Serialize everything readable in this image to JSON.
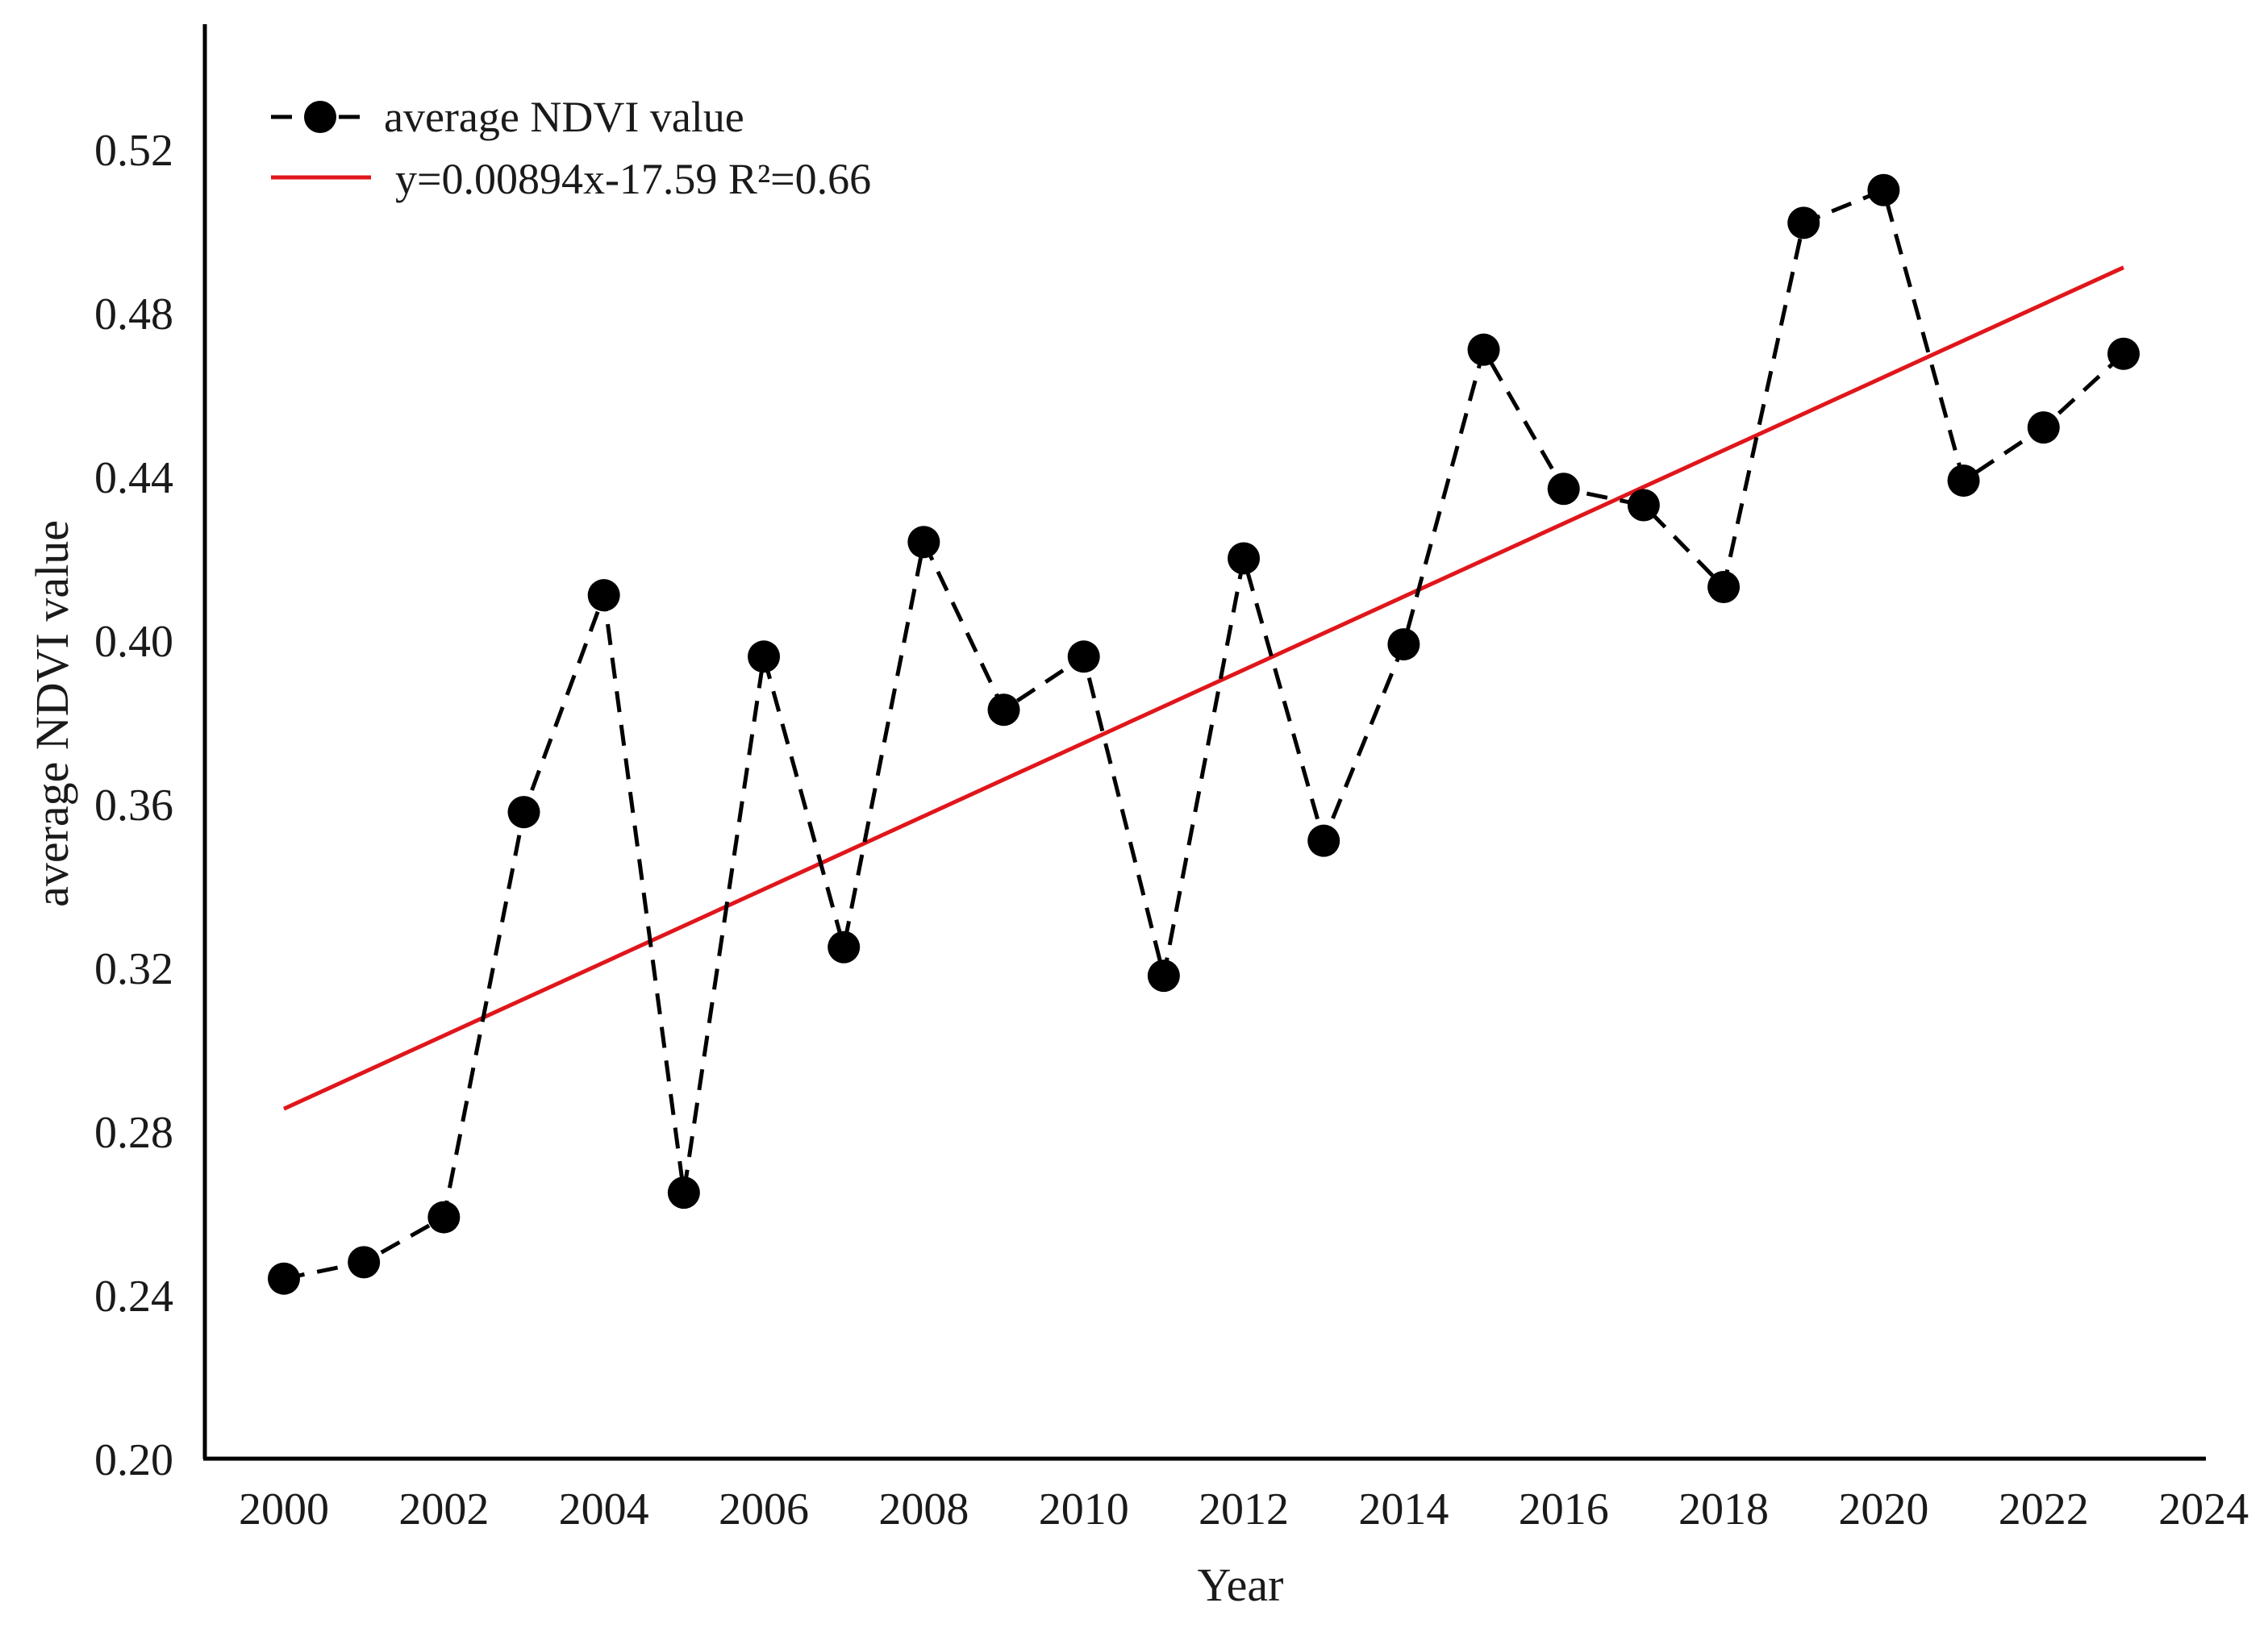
{
  "chart_data": {
    "type": "line",
    "title": "",
    "xlabel": "Year",
    "ylabel": "average NDVI value",
    "xlim": [
      1999,
      2024
    ],
    "ylim": [
      0.2,
      0.55
    ],
    "xticks": [
      2000,
      2002,
      2004,
      2006,
      2008,
      2010,
      2012,
      2014,
      2016,
      2018,
      2020,
      2022,
      2024
    ],
    "xtick_labels": [
      "2000",
      "2002",
      "2004",
      "2006",
      "2008",
      "2010",
      "2012",
      "2014",
      "2016",
      "2018",
      "2020",
      "2022",
      "2024"
    ],
    "yticks": [
      0.2,
      0.24,
      0.28,
      0.32,
      0.36,
      0.4,
      0.44,
      0.48,
      0.52
    ],
    "ytick_labels": [
      "0.20",
      "0.24",
      "0.28",
      "0.32",
      "0.36",
      "0.40",
      "0.44",
      "0.48",
      "0.52"
    ],
    "grid": false,
    "legend_position": "top-left",
    "series": [
      {
        "name": "average NDVI value",
        "style": "dashed-line-with-markers",
        "color": "#000000",
        "x": [
          2000,
          2001,
          2002,
          2003,
          2004,
          2005,
          2006,
          2007,
          2008,
          2009,
          2010,
          2011,
          2012,
          2013,
          2014,
          2015,
          2016,
          2017,
          2018,
          2019,
          2020,
          2021,
          2022,
          2023
        ],
        "y": [
          0.244,
          0.248,
          0.259,
          0.358,
          0.411,
          0.265,
          0.396,
          0.325,
          0.424,
          0.383,
          0.396,
          0.318,
          0.42,
          0.351,
          0.399,
          0.471,
          0.437,
          0.433,
          0.413,
          0.502,
          0.51,
          0.439,
          0.452,
          0.47
        ]
      },
      {
        "name": "y=0.00894x-17.59 R²=0.66",
        "style": "solid-line",
        "color": "#e0161b",
        "x": [
          2000,
          2023
        ],
        "y": [
          0.2855,
          0.4911
        ]
      }
    ]
  }
}
